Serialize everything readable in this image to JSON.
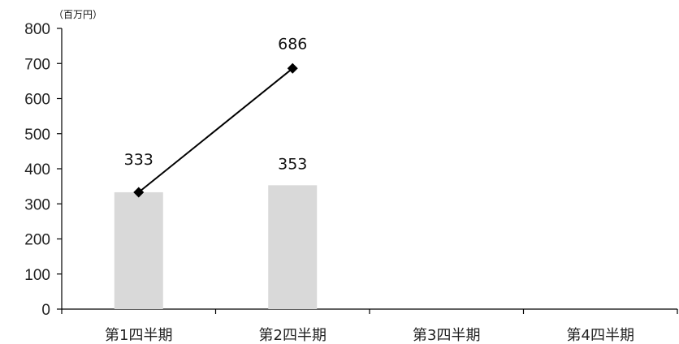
{
  "chart_data": {
    "type": "bar",
    "unit_label": "（百万円）",
    "categories": [
      "第1四半期",
      "第2四半期",
      "第3四半期",
      "第4四半期"
    ],
    "ylim": [
      0,
      800
    ],
    "yticks": [
      0,
      100,
      200,
      300,
      400,
      500,
      600,
      700,
      800
    ],
    "grid": false,
    "legend": "none",
    "series": [
      {
        "kind": "bar",
        "values": [
          333,
          353,
          null,
          null
        ],
        "labels": [
          "333",
          "353",
          "",
          ""
        ],
        "color": "#d9d9d9"
      },
      {
        "kind": "line",
        "values": [
          333,
          686,
          null,
          null
        ],
        "labels": [
          "",
          "686",
          "",
          ""
        ],
        "color": "#000000",
        "marker": "diamond"
      }
    ],
    "data_label_positions": [
      {
        "series": 0,
        "index": 0,
        "text": "333"
      },
      {
        "series": 0,
        "index": 1,
        "text": "353"
      },
      {
        "series": 1,
        "index": 1,
        "text": "686"
      }
    ]
  }
}
